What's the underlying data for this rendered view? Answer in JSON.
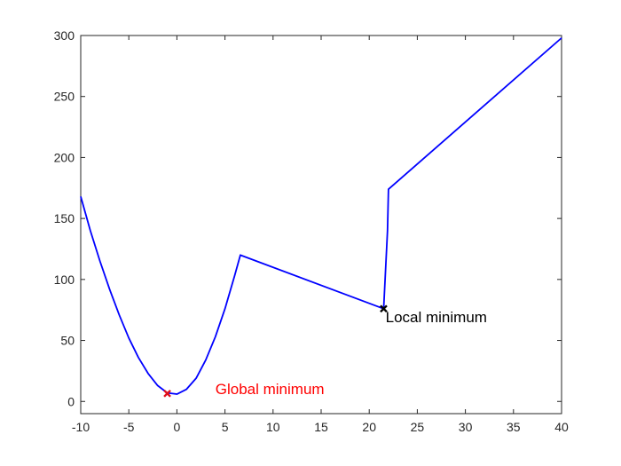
{
  "chart_data": {
    "type": "line",
    "title": "",
    "xlabel": "",
    "ylabel": "",
    "xlim": [
      -10,
      40
    ],
    "ylim": [
      -10,
      300
    ],
    "xticks": [
      -10,
      -5,
      0,
      5,
      10,
      15,
      20,
      25,
      30,
      35,
      40
    ],
    "yticks": [
      0,
      50,
      100,
      150,
      200,
      250,
      300
    ],
    "grid": false,
    "legend": "none",
    "series": [
      {
        "color": "#0000ff",
        "x": [
          -10,
          -9,
          -8,
          -7,
          -6,
          -5,
          -4,
          -3,
          -2,
          -1,
          0,
          1,
          2,
          3,
          4,
          5,
          6,
          6.6,
          21.5,
          21.9,
          22.0,
          40
        ],
        "y": [
          168,
          140,
          115,
          92,
          71,
          52,
          36,
          23,
          13,
          7,
          6,
          10,
          19,
          34,
          53,
          76,
          103,
          120,
          76,
          140,
          174,
          298
        ]
      }
    ],
    "markers": [
      {
        "x": -1,
        "y": 6.5,
        "symbol": "x",
        "color": "#e0101a"
      },
      {
        "x": 21.5,
        "y": 76,
        "symbol": "x",
        "color": "#000000"
      }
    ],
    "annotations": [
      {
        "text": "Global minimum",
        "x": 4,
        "y": 6,
        "color": "#ff0000"
      },
      {
        "text": "Local minimum",
        "x": 21.7,
        "y": 65,
        "color": "#000000"
      }
    ]
  }
}
